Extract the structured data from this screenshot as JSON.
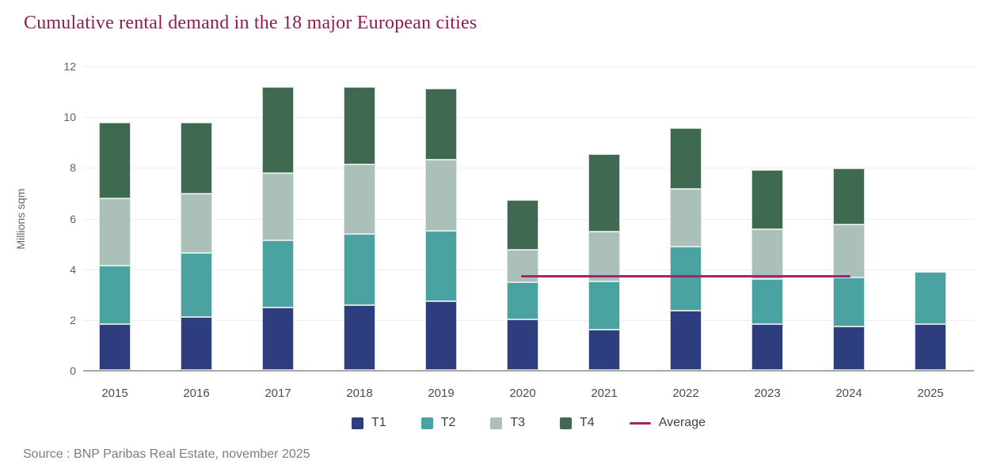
{
  "header": {
    "title": "Cumulative rental demand in the 18 major European cities"
  },
  "footer": {
    "source": "Source : BNP Paribas Real Estate, november 2025"
  },
  "colors": {
    "title": "#8d1e51",
    "t1": "#2e3d7e",
    "t2": "#4aa3a0",
    "t3": "#aac0b8",
    "t4": "#3f6950",
    "average": "#a12568",
    "axis_line": "#a8a8a6",
    "grid_line": "#efeeea",
    "tick_text": "#606060"
  },
  "chart_data": {
    "type": "bar",
    "stacked": true,
    "title": "Cumulative rental demand in the 18 major European cities",
    "xlabel": "",
    "ylabel": "Millions sqm",
    "categories": [
      "2015",
      "2016",
      "2017",
      "2018",
      "2019",
      "2020",
      "2021",
      "2022",
      "2023",
      "2024",
      "2025"
    ],
    "series": [
      {
        "name": "T1",
        "color": "#2e3d7e",
        "values": [
          1.8,
          2.1,
          2.45,
          2.55,
          2.7,
          2.0,
          1.6,
          2.35,
          1.8,
          1.7,
          1.8
        ]
      },
      {
        "name": "T2",
        "color": "#4aa3a0",
        "values": [
          2.3,
          2.5,
          2.65,
          2.8,
          2.8,
          1.45,
          1.9,
          2.5,
          1.8,
          1.95,
          2.05
        ]
      },
      {
        "name": "T3",
        "color": "#aac0b8",
        "values": [
          2.65,
          2.35,
          2.65,
          2.75,
          2.8,
          1.3,
          1.95,
          2.3,
          1.95,
          2.1,
          0
        ]
      },
      {
        "name": "T4",
        "color": "#3f6950",
        "values": [
          3.0,
          2.8,
          3.4,
          3.05,
          2.8,
          1.95,
          3.05,
          2.4,
          2.35,
          2.2,
          0
        ]
      }
    ],
    "totals": [
      9.75,
      9.75,
      11.15,
      11.15,
      11.1,
      6.7,
      8.5,
      9.55,
      7.9,
      7.95,
      3.85
    ],
    "average_line": {
      "label": "Average",
      "color": "#a12568",
      "value": 3.75,
      "from_category": "2020",
      "to_category": "2024"
    },
    "y_ticks": [
      0,
      2,
      4,
      6,
      8,
      10,
      12
    ],
    "ylim": [
      0,
      12
    ],
    "grid": true,
    "legend_position": "bottom",
    "legend": [
      "T1",
      "T2",
      "T3",
      "T4",
      "Average"
    ]
  }
}
